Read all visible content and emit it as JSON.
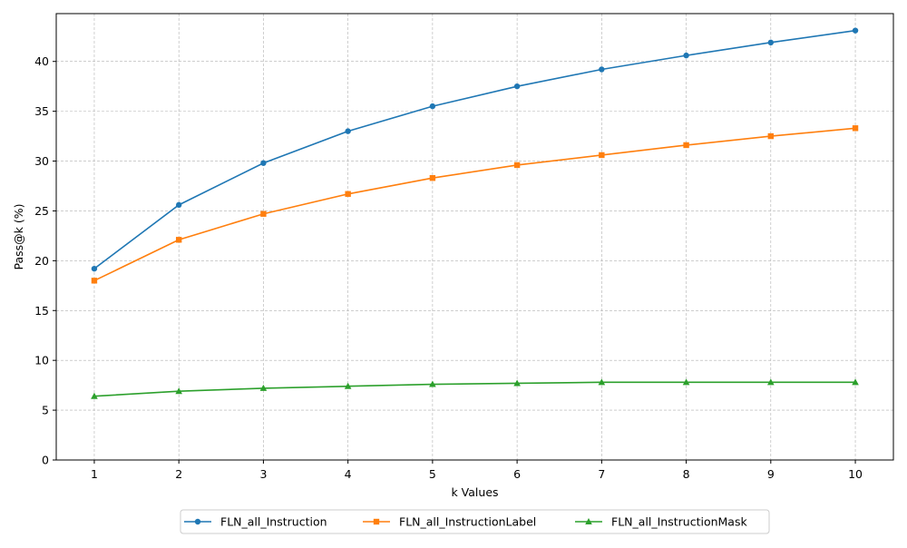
{
  "chart_data": {
    "type": "line",
    "title": "",
    "xlabel": "k Values",
    "ylabel": "Pass@k (%)",
    "x": [
      1,
      2,
      3,
      4,
      5,
      6,
      7,
      8,
      9,
      10
    ],
    "xlim": [
      0.55,
      10.45
    ],
    "ylim": [
      0,
      44.8
    ],
    "xticks": [
      1,
      2,
      3,
      4,
      5,
      6,
      7,
      8,
      9,
      10
    ],
    "yticks": [
      0,
      5,
      10,
      15,
      20,
      25,
      30,
      35,
      40
    ],
    "grid": true,
    "legend_position": "bottom-center, outside",
    "series": [
      {
        "name": "FLN_all_Instruction",
        "color": "#1f77b4",
        "marker": "circle",
        "values": [
          19.2,
          25.6,
          29.8,
          33.0,
          35.5,
          37.5,
          39.2,
          40.6,
          41.9,
          43.1
        ]
      },
      {
        "name": "FLN_all_InstructionLabel",
        "color": "#ff7f0e",
        "marker": "square",
        "values": [
          18.0,
          22.1,
          24.7,
          26.7,
          28.3,
          29.6,
          30.6,
          31.6,
          32.5,
          33.3
        ]
      },
      {
        "name": "FLN_all_InstructionMask",
        "color": "#2ca02c",
        "marker": "triangle",
        "values": [
          6.4,
          6.9,
          7.2,
          7.4,
          7.6,
          7.7,
          7.8,
          7.8,
          7.8,
          7.8
        ]
      }
    ]
  }
}
